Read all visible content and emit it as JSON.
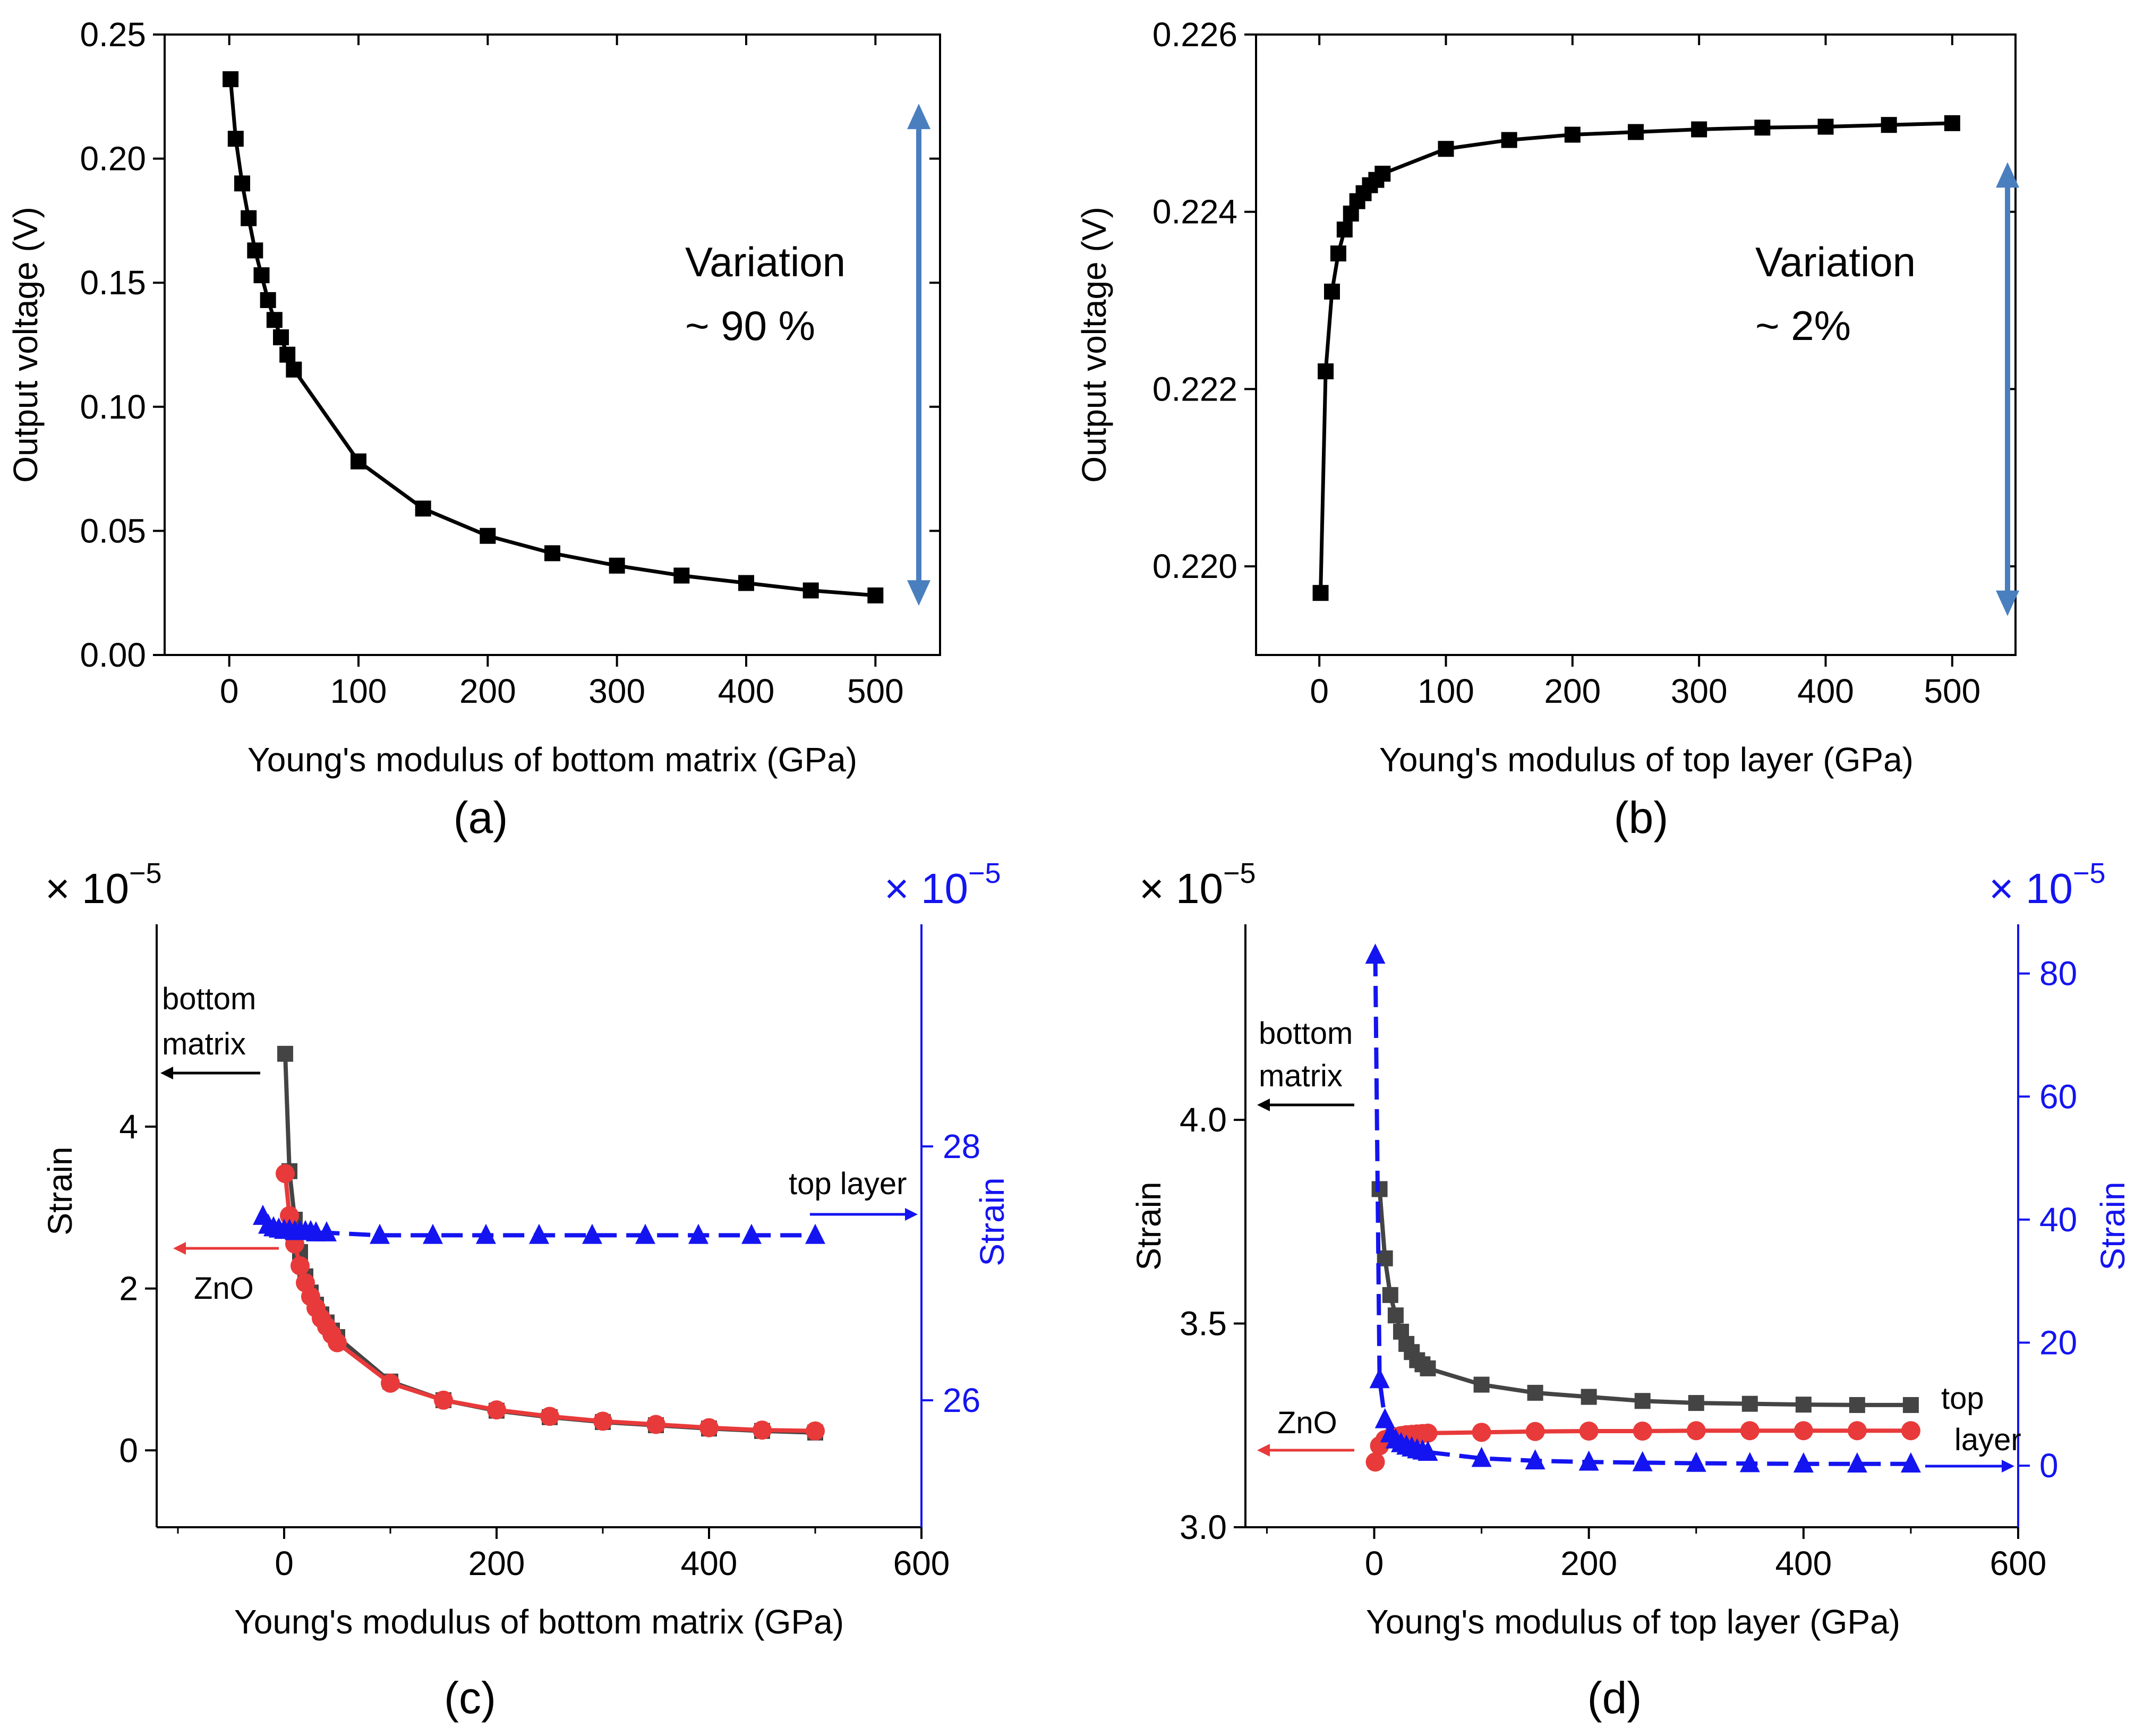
{
  "colors": {
    "black_series": "#000000",
    "gray_series": "#444444",
    "red_series": "#e83a3a",
    "blue_series": "#1414f0",
    "arrow_steel": "#4a7fbf"
  },
  "chart_data": [
    {
      "type": "line",
      "panel": "(a)",
      "xlabel": "Young's modulus of bottom matrix (GPa)",
      "ylabel": "Output voltage (V)",
      "xlim": [
        -50,
        550
      ],
      "ylim": [
        0,
        0.25
      ],
      "xticks": [
        0,
        100,
        200,
        300,
        400,
        500
      ],
      "yticks": [
        0.0,
        0.05,
        0.1,
        0.15,
        0.2,
        0.25
      ],
      "xtick_labels": [
        "0",
        "100",
        "200",
        "300",
        "400",
        "500"
      ],
      "ytick_labels": [
        "0.00",
        "0.05",
        "0.10",
        "0.15",
        "0.20",
        "0.25"
      ],
      "annotation_title": "Variation",
      "annotation_value": "~ 90 %",
      "arrow_range": [
        0.022,
        0.22
      ],
      "series": [
        {
          "name": "output voltage",
          "marker": "square",
          "x": [
            1,
            5,
            10,
            15,
            20,
            25,
            30,
            35,
            40,
            45,
            50,
            100,
            150,
            200,
            250,
            300,
            350,
            400,
            450,
            500
          ],
          "y": [
            0.232,
            0.208,
            0.19,
            0.176,
            0.163,
            0.153,
            0.143,
            0.135,
            0.128,
            0.121,
            0.115,
            0.078,
            0.059,
            0.048,
            0.041,
            0.036,
            0.032,
            0.029,
            0.026,
            0.024
          ]
        }
      ]
    },
    {
      "type": "line",
      "panel": "(b)",
      "xlabel": "Young's modulus of top layer (GPa)",
      "ylabel": "Output voltage (V)",
      "xlim": [
        -50,
        550
      ],
      "ylim": [
        0.219,
        0.226
      ],
      "xticks": [
        0,
        100,
        200,
        300,
        400,
        500
      ],
      "yticks": [
        0.22,
        0.222,
        0.224,
        0.226
      ],
      "xtick_labels": [
        "0",
        "100",
        "200",
        "300",
        "400",
        "500"
      ],
      "ytick_labels": [
        "0.220",
        "0.222",
        "0.224",
        "0.226"
      ],
      "annotation_title": "Variation",
      "annotation_value": "~ 2%",
      "arrow_range": [
        0.2195,
        0.2245
      ],
      "series": [
        {
          "name": "output voltage",
          "marker": "square",
          "x": [
            1,
            5,
            10,
            15,
            20,
            25,
            30,
            35,
            40,
            45,
            50,
            100,
            150,
            200,
            250,
            300,
            350,
            400,
            450,
            500
          ],
          "y": [
            0.2197,
            0.2222,
            0.2231,
            0.22353,
            0.2238,
            0.22398,
            0.22412,
            0.22421,
            0.2243,
            0.22436,
            0.22443,
            0.22471,
            0.22481,
            0.22487,
            0.2249,
            0.22493,
            0.22495,
            0.22496,
            0.22498,
            0.225
          ]
        }
      ]
    },
    {
      "type": "line",
      "panel": "(c)",
      "xlabel": "Young's modulus of bottom matrix (GPa)",
      "ylabel": "Strain",
      "ylabel_right": "Strain",
      "xlim": [
        -120,
        600
      ],
      "ylim": [
        -0.95,
        6.5
      ],
      "ylim_right": [
        25,
        29.75
      ],
      "xticks": [
        0,
        200,
        400,
        600
      ],
      "yticks": [
        0,
        2,
        4
      ],
      "yticks_right": [
        26,
        28
      ],
      "xtick_labels": [
        "0",
        "200",
        "400",
        "600"
      ],
      "ytick_labels": [
        "0",
        "2",
        "4"
      ],
      "ytick_labels_right": [
        "26",
        "28"
      ],
      "multiplier_left": "× 10",
      "multiplier_right": "× 10",
      "exponent": "−5",
      "legend_bottom_matrix": [
        "bottom",
        "matrix"
      ],
      "legend_zno": "ZnO",
      "legend_top_layer": "top layer",
      "series": [
        {
          "name": "bottom matrix",
          "axis": "left",
          "marker": "square",
          "x": [
            1,
            5,
            10,
            15,
            20,
            25,
            30,
            35,
            40,
            45,
            50,
            100,
            150,
            200,
            250,
            300,
            350,
            400,
            450,
            500
          ],
          "y": [
            4.9,
            3.45,
            2.85,
            2.45,
            2.15,
            1.95,
            1.8,
            1.68,
            1.58,
            1.48,
            1.4,
            0.85,
            0.62,
            0.49,
            0.41,
            0.35,
            0.31,
            0.27,
            0.24,
            0.22
          ]
        },
        {
          "name": "ZnO",
          "axis": "left",
          "marker": "circle",
          "x": [
            1,
            5,
            10,
            15,
            20,
            25,
            30,
            35,
            40,
            45,
            50,
            100,
            150,
            200,
            250,
            300,
            350,
            400,
            450,
            500
          ],
          "y": [
            3.42,
            2.9,
            2.55,
            2.28,
            2.07,
            1.9,
            1.76,
            1.63,
            1.53,
            1.43,
            1.33,
            0.83,
            0.62,
            0.5,
            0.42,
            0.36,
            0.32,
            0.28,
            0.25,
            0.24
          ]
        },
        {
          "name": "top layer",
          "axis": "right",
          "marker": "triangle",
          "x": [
            -20,
            -15,
            -10,
            -5,
            0,
            5,
            10,
            15,
            20,
            25,
            30,
            40,
            90,
            140,
            190,
            240,
            290,
            340,
            390,
            440,
            500
          ],
          "y": [
            27.45,
            27.38,
            27.36,
            27.35,
            27.34,
            27.34,
            27.33,
            27.33,
            27.33,
            27.33,
            27.32,
            27.32,
            27.3,
            27.3,
            27.3,
            27.3,
            27.3,
            27.3,
            27.3,
            27.3,
            27.3
          ]
        }
      ]
    },
    {
      "type": "line",
      "panel": "(d)",
      "xlabel": "Young's modulus of top layer (GPa)",
      "ylabel": "Strain",
      "ylabel_right": "Strain",
      "xlim": [
        -120,
        600
      ],
      "ylim": [
        3.0,
        4.48
      ],
      "ylim_right": [
        -10,
        88
      ],
      "xticks": [
        0,
        200,
        400,
        600
      ],
      "yticks": [
        3.0,
        3.5,
        4.0
      ],
      "yticks_right": [
        0,
        20,
        40,
        60,
        80
      ],
      "xtick_labels": [
        "0",
        "200",
        "400",
        "600"
      ],
      "ytick_labels": [
        "3.0",
        "3.5",
        "4.0"
      ],
      "ytick_labels_right": [
        "0",
        "20",
        "40",
        "60",
        "80"
      ],
      "multiplier_left": "× 10",
      "multiplier_right": "× 10",
      "exponent": "−5",
      "legend_bottom_matrix": [
        "bottom",
        "matrix"
      ],
      "legend_zno": "ZnO",
      "legend_top_layer": [
        "top",
        "layer"
      ],
      "series": [
        {
          "name": "bottom matrix",
          "axis": "left",
          "marker": "square",
          "x": [
            5,
            10,
            15,
            20,
            25,
            30,
            35,
            40,
            45,
            50,
            100,
            150,
            200,
            250,
            300,
            350,
            400,
            450,
            500
          ],
          "y": [
            3.83,
            3.66,
            3.57,
            3.52,
            3.48,
            3.45,
            3.43,
            3.41,
            3.4,
            3.39,
            3.35,
            3.33,
            3.32,
            3.31,
            3.305,
            3.303,
            3.301,
            3.3,
            3.3
          ]
        },
        {
          "name": "ZnO",
          "axis": "left",
          "marker": "circle",
          "x": [
            1,
            5,
            10,
            15,
            20,
            25,
            30,
            35,
            40,
            45,
            50,
            100,
            150,
            200,
            250,
            300,
            350,
            400,
            450,
            500
          ],
          "y": [
            3.16,
            3.2,
            3.215,
            3.22,
            3.222,
            3.225,
            3.227,
            3.228,
            3.229,
            3.23,
            3.231,
            3.233,
            3.235,
            3.236,
            3.236,
            3.237,
            3.237,
            3.237,
            3.237,
            3.237
          ]
        },
        {
          "name": "top layer",
          "axis": "right",
          "marker": "triangle",
          "x": [
            1,
            5,
            10,
            15,
            20,
            25,
            30,
            35,
            40,
            45,
            50,
            100,
            150,
            200,
            250,
            300,
            350,
            400,
            450,
            500
          ],
          "y": [
            83,
            14,
            7.5,
            5.2,
            4.2,
            3.6,
            3.2,
            2.9,
            2.6,
            2.4,
            2.2,
            1.2,
            0.8,
            0.6,
            0.5,
            0.4,
            0.35,
            0.3,
            0.3,
            0.3
          ]
        }
      ]
    }
  ],
  "captions": [
    "(a)",
    "(b)",
    "(c)",
    "(d)"
  ]
}
